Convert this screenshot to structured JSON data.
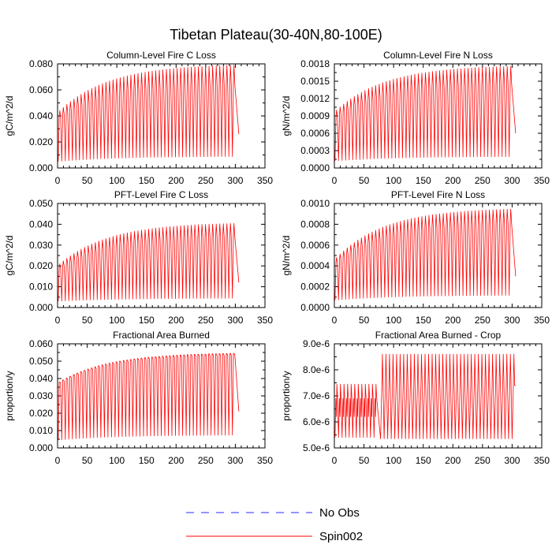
{
  "title": "Tibetan Plateau(30-40N,80-100E)",
  "legend": {
    "entries": [
      {
        "label": "No Obs",
        "color": "#2b2bff",
        "dash": "dashed"
      },
      {
        "label": "Spin002",
        "color": "#ff0000",
        "dash": "solid"
      }
    ]
  },
  "chart_data": [
    {
      "type": "line",
      "title": "Column-Level Fire C Loss",
      "ylabel": "gC/m^2/d",
      "xlim": [
        0,
        350
      ],
      "x_ticks": [
        "0",
        "50",
        "100",
        "150",
        "200",
        "250",
        "300",
        "350"
      ],
      "ylim": [
        0,
        0.08
      ],
      "y_ticks": [
        {
          "v": 0.0,
          "label": "0.000"
        },
        {
          "v": 0.02,
          "label": "0.020"
        },
        {
          "v": 0.04,
          "label": "0.040"
        },
        {
          "v": 0.06,
          "label": "0.060"
        },
        {
          "v": 0.08,
          "label": "0.080"
        }
      ],
      "series": [
        {
          "name": "Spin002",
          "color": "#ff0000",
          "kind": "seasonal_cycle",
          "x_start": 1,
          "x_end": 306,
          "period": 6,
          "peak_start": 0.044,
          "peak_end": 0.08,
          "peak_rate": 0.012,
          "trough_start": 0.005,
          "trough_end": 0.009,
          "trough_rate": 0.01,
          "alt_peak_start": 0.04,
          "alt_peak_end": 0.066,
          "end_value": 0.026
        }
      ]
    },
    {
      "type": "line",
      "title": "Column-Level Fire N Loss",
      "ylabel": "gN/m^2/d",
      "xlim": [
        0,
        350
      ],
      "x_ticks": [
        "0",
        "50",
        "100",
        "150",
        "200",
        "250",
        "300",
        "350"
      ],
      "ylim": [
        0,
        0.0018
      ],
      "y_ticks": [
        {
          "v": 0.0,
          "label": "0.0000"
        },
        {
          "v": 0.0003,
          "label": "0.0003"
        },
        {
          "v": 0.0006,
          "label": "0.0006"
        },
        {
          "v": 0.0009,
          "label": "0.0009"
        },
        {
          "v": 0.0012,
          "label": "0.0012"
        },
        {
          "v": 0.0015,
          "label": "0.0015"
        },
        {
          "v": 0.0018,
          "label": "0.0018"
        }
      ],
      "series": [
        {
          "name": "Spin002",
          "color": "#ff0000",
          "kind": "seasonal_cycle",
          "x_start": 1,
          "x_end": 306,
          "period": 6,
          "peak_start": 0.001,
          "peak_end": 0.00178,
          "peak_rate": 0.012,
          "trough_start": 0.00012,
          "trough_end": 0.0002,
          "trough_rate": 0.01,
          "alt_peak_start": 0.0009,
          "alt_peak_end": 0.0015,
          "end_value": 0.0006
        }
      ]
    },
    {
      "type": "line",
      "title": "PFT-Level Fire C Loss",
      "ylabel": "gC/m^2/d",
      "xlim": [
        0,
        350
      ],
      "x_ticks": [
        "0",
        "50",
        "100",
        "150",
        "200",
        "250",
        "300",
        "350"
      ],
      "ylim": [
        0,
        0.05
      ],
      "y_ticks": [
        {
          "v": 0.0,
          "label": "0.000"
        },
        {
          "v": 0.01,
          "label": "0.010"
        },
        {
          "v": 0.02,
          "label": "0.020"
        },
        {
          "v": 0.03,
          "label": "0.030"
        },
        {
          "v": 0.04,
          "label": "0.040"
        },
        {
          "v": 0.05,
          "label": "0.050"
        }
      ],
      "series": [
        {
          "name": "Spin002",
          "color": "#ff0000",
          "kind": "seasonal_cycle",
          "x_start": 1,
          "x_end": 306,
          "period": 6,
          "peak_start": 0.021,
          "peak_end": 0.041,
          "peak_rate": 0.012,
          "trough_start": 0.003,
          "trough_end": 0.0045,
          "trough_rate": 0.01,
          "alt_peak_start": 0.019,
          "alt_peak_end": 0.035,
          "end_value": 0.012
        }
      ]
    },
    {
      "type": "line",
      "title": "PFT-Level Fire N Loss",
      "ylabel": "gN/m^2/d",
      "xlim": [
        0,
        350
      ],
      "x_ticks": [
        "0",
        "50",
        "100",
        "150",
        "200",
        "250",
        "300",
        "350"
      ],
      "ylim": [
        0,
        0.001
      ],
      "y_ticks": [
        {
          "v": 0.0,
          "label": "0.0000"
        },
        {
          "v": 0.0002,
          "label": "0.0002"
        },
        {
          "v": 0.0004,
          "label": "0.0004"
        },
        {
          "v": 0.0006,
          "label": "0.0006"
        },
        {
          "v": 0.0008,
          "label": "0.0008"
        },
        {
          "v": 0.001,
          "label": "0.0010"
        }
      ],
      "series": [
        {
          "name": "Spin002",
          "color": "#ff0000",
          "kind": "seasonal_cycle",
          "x_start": 1,
          "x_end": 306,
          "period": 6,
          "peak_start": 0.00048,
          "peak_end": 0.00096,
          "peak_rate": 0.012,
          "trough_start": 7e-05,
          "trough_end": 0.00012,
          "trough_rate": 0.01,
          "alt_peak_start": 0.00044,
          "alt_peak_end": 0.00083,
          "end_value": 0.0003
        }
      ]
    },
    {
      "type": "line",
      "title": "Fractional Area Burned",
      "ylabel": "proportion/y",
      "xlim": [
        0,
        350
      ],
      "x_ticks": [
        "0",
        "50",
        "100",
        "150",
        "200",
        "250",
        "300",
        "350"
      ],
      "ylim": [
        0,
        0.06
      ],
      "y_ticks": [
        {
          "v": 0.0,
          "label": "0.000"
        },
        {
          "v": 0.01,
          "label": "0.010"
        },
        {
          "v": 0.02,
          "label": "0.020"
        },
        {
          "v": 0.03,
          "label": "0.030"
        },
        {
          "v": 0.04,
          "label": "0.040"
        },
        {
          "v": 0.05,
          "label": "0.050"
        },
        {
          "v": 0.06,
          "label": "0.060"
        }
      ],
      "series": [
        {
          "name": "Spin002",
          "color": "#ff0000",
          "kind": "seasonal_cycle",
          "x_start": 1,
          "x_end": 306,
          "period": 6,
          "peak_start": 0.038,
          "peak_end": 0.055,
          "peak_rate": 0.012,
          "trough_start": 0.0045,
          "trough_end": 0.0075,
          "trough_rate": 0.01,
          "alt_peak_start": 0.038,
          "alt_peak_end": 0.055,
          "end_value": 0.021
        }
      ]
    },
    {
      "type": "line",
      "title": "Fractional Area Burned - Crop",
      "ylabel": "proportion/y",
      "xlim": [
        0,
        350
      ],
      "x_ticks": [
        "0",
        "50",
        "100",
        "150",
        "200",
        "250",
        "300",
        "350"
      ],
      "ylim": [
        5e-06,
        9e-06
      ],
      "y_ticks": [
        {
          "v": 5e-06,
          "label": "5.0e-6"
        },
        {
          "v": 6e-06,
          "label": "6.0e-6"
        },
        {
          "v": 7e-06,
          "label": "7.0e-6"
        },
        {
          "v": 8e-06,
          "label": "8.0e-6"
        },
        {
          "v": 9e-06,
          "label": "9.0e-6"
        }
      ],
      "series": [
        {
          "name": "Spin002",
          "color": "#ff0000",
          "kind": "regime_cycle",
          "x_start": 1,
          "x_end": 306,
          "period": 6,
          "regimes": [
            {
              "from": 1,
              "to": 78,
              "peak": 7.45e-06,
              "trough": 5.4e-06,
              "inner_peak": 6.9e-06,
              "inner_trough": 6.2e-06
            },
            {
              "from": 78,
              "to": 306,
              "peak": 8.6e-06,
              "trough": 5.35e-06,
              "plateau": 7.4e-06
            }
          ],
          "end_value": 7.4e-06
        }
      ]
    }
  ]
}
